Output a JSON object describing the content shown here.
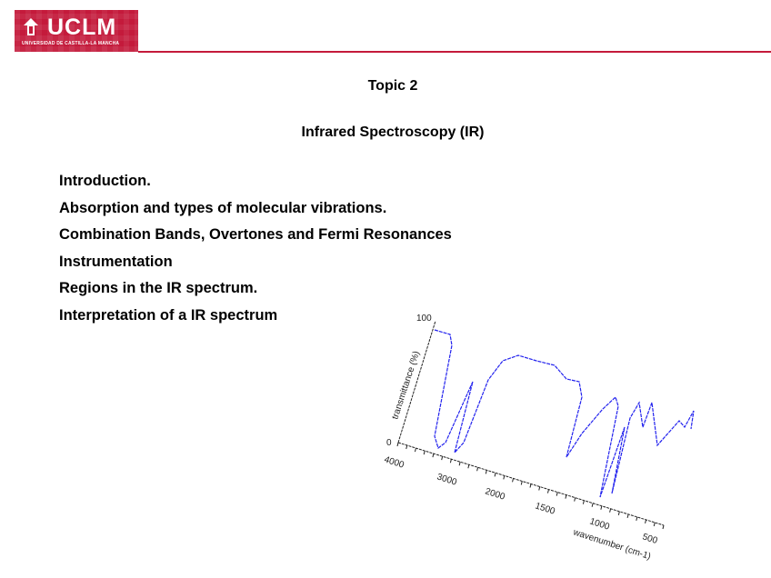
{
  "header": {
    "logo_text": "UCLM",
    "logo_subtext": "UNIVERSIDAD DE CASTILLA-LA MANCHA",
    "brand_color": "#c41a3b"
  },
  "slide": {
    "topic": "Topic 2",
    "subtitle": "Infrared Spectroscopy (IR)",
    "items": [
      "Introduction.",
      "Absorption and types of molecular vibrations.",
      "Combination Bands, Overtones and Fermi Resonances",
      "Instrumentation",
      "Regions in the IR spectrum.",
      "Interpretation of a IR spectrum"
    ]
  },
  "spectrum": {
    "y_label": "transmittance (%)",
    "x_label": "wavenumber (cm-1)",
    "y_ticks": [
      "100",
      "0"
    ],
    "x_ticks": [
      "4000",
      "3000",
      "2000",
      "1500",
      "1000",
      "500"
    ],
    "line_color": "#2222ee"
  }
}
